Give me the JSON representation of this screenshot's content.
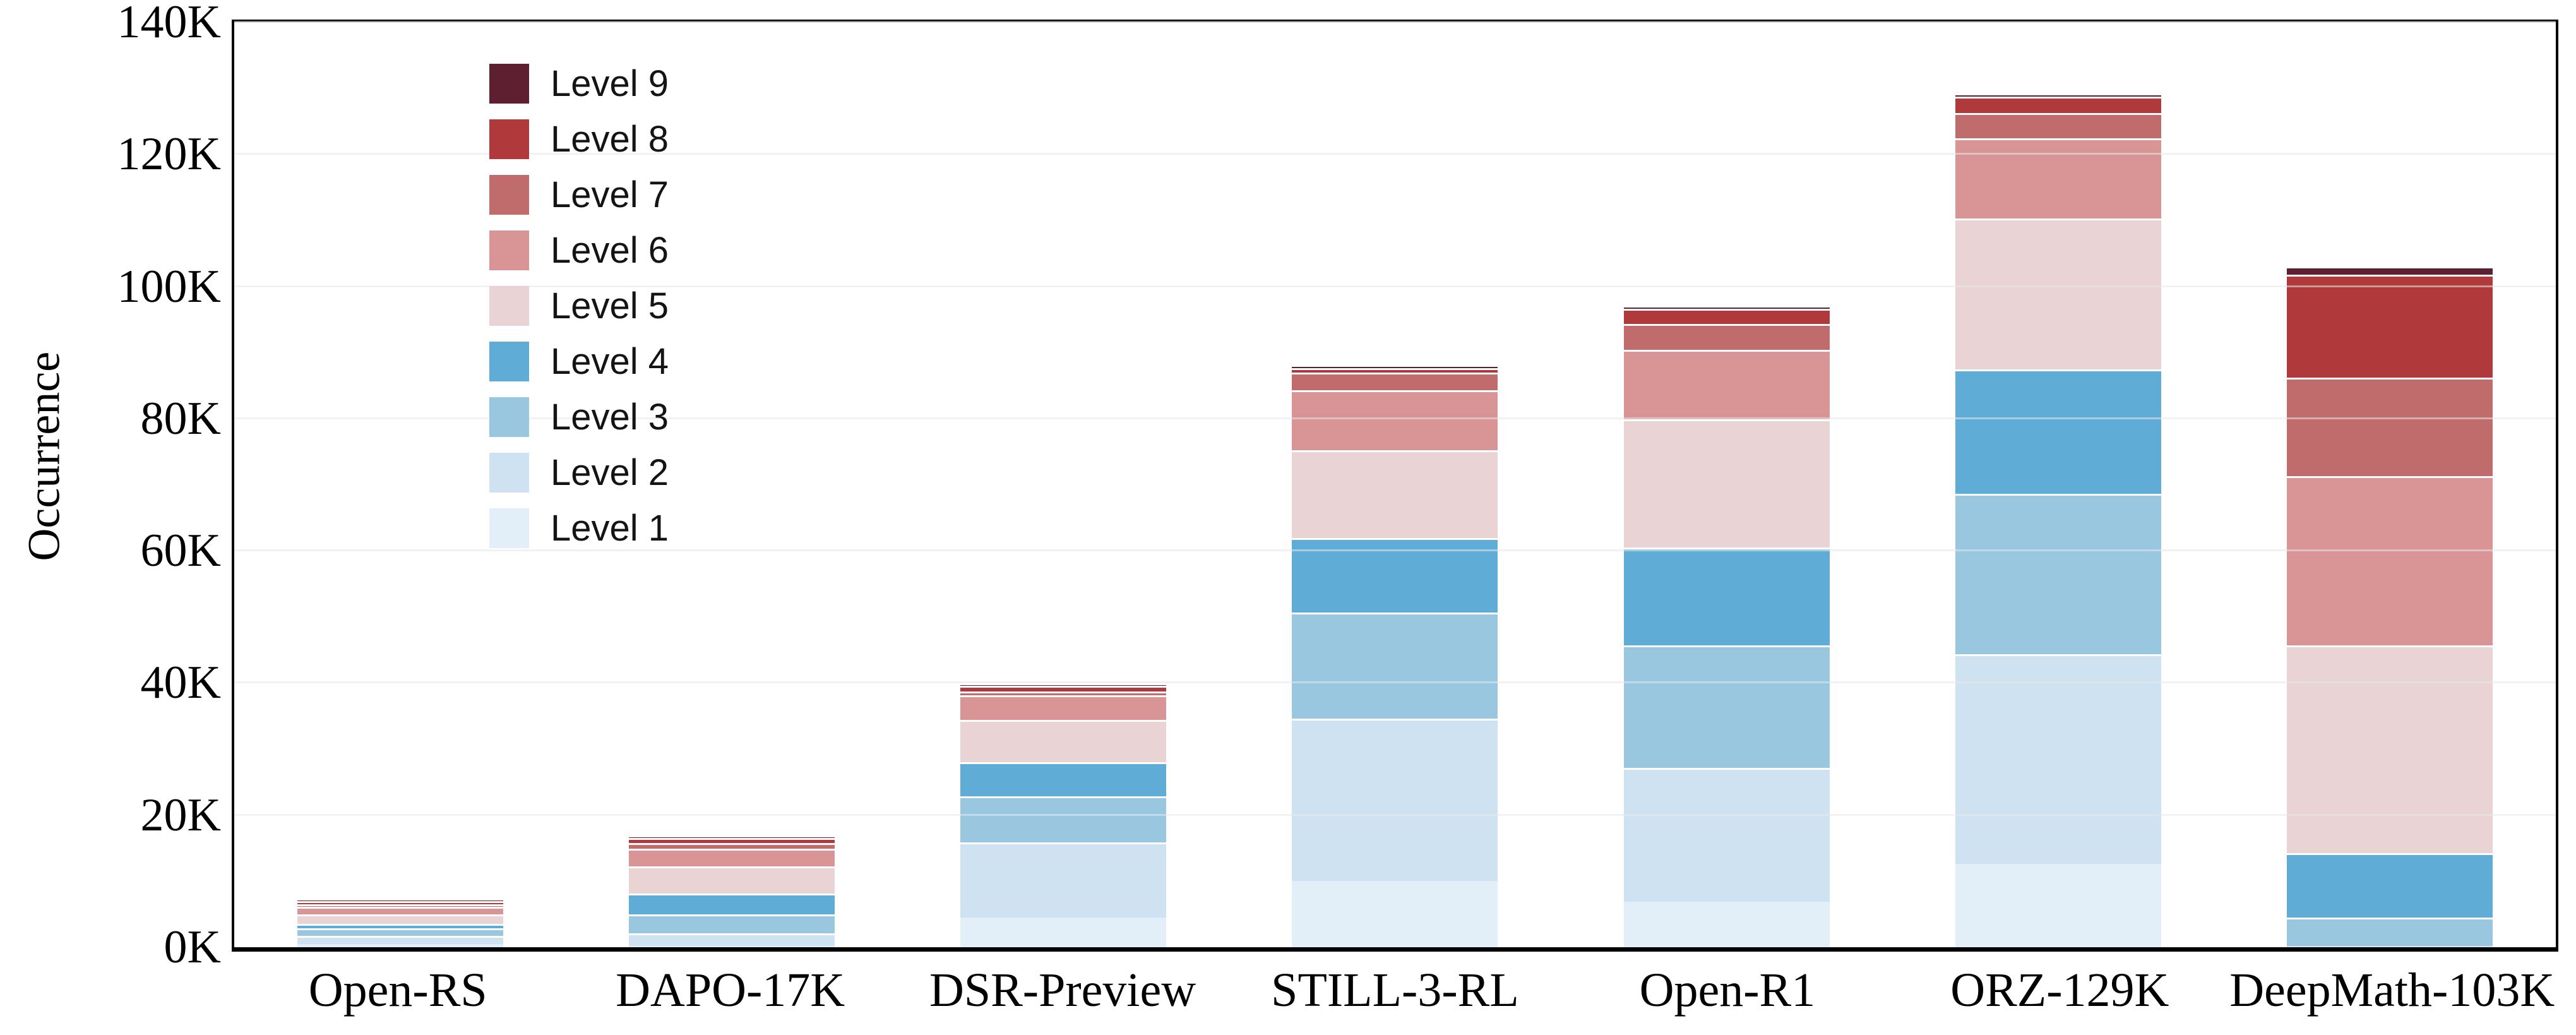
{
  "chart_data": {
    "type": "bar",
    "variant": "stacked-vertical",
    "title": "",
    "xlabel": "",
    "ylabel": "Occurrence",
    "unit": "thousands",
    "ylim": [
      0,
      140
    ],
    "grid": "horizontal",
    "legend_position": "upper-left-inside",
    "yticks": [
      {
        "value": 0,
        "label": "0K"
      },
      {
        "value": 20,
        "label": "20K"
      },
      {
        "value": 40,
        "label": "40K"
      },
      {
        "value": 60,
        "label": "60K"
      },
      {
        "value": 80,
        "label": "80K"
      },
      {
        "value": 100,
        "label": "100K"
      },
      {
        "value": 120,
        "label": "120K"
      },
      {
        "value": 140,
        "label": "140K"
      }
    ],
    "categories": [
      "Open-RS",
      "DAPO-17K",
      "DSR-Preview",
      "STILL-3-RL",
      "Open-R1",
      "ORZ-129K",
      "DeepMath-103K"
    ],
    "series": [
      {
        "name": "Level 1",
        "color": "#e3eff8",
        "values": [
          0.45,
          0.2,
          4.5,
          10.0,
          6.9,
          12.6,
          0.1
        ]
      },
      {
        "name": "Level 2",
        "color": "#cfe2f1",
        "values": [
          1.2,
          1.9,
          11.4,
          24.6,
          20.3,
          31.7,
          0.1
        ]
      },
      {
        "name": "Level 3",
        "color": "#9ac7e0",
        "values": [
          1.15,
          2.9,
          7.0,
          16.1,
          18.5,
          24.3,
          4.3
        ]
      },
      {
        "name": "Level 4",
        "color": "#5fadd6",
        "values": [
          0.65,
          3.2,
          5.2,
          11.3,
          14.8,
          18.8,
          9.7
        ]
      },
      {
        "name": "Level 5",
        "color": "#e9d3d5",
        "values": [
          1.45,
          4.1,
          6.4,
          13.3,
          19.4,
          22.8,
          31.4
        ]
      },
      {
        "name": "Level 6",
        "color": "#d99496",
        "values": [
          1.1,
          2.7,
          3.7,
          9.1,
          10.5,
          12.1,
          25.6
        ]
      },
      {
        "name": "Level 7",
        "color": "#c06c6c",
        "values": [
          0.35,
          0.9,
          0.6,
          2.7,
          3.9,
          3.8,
          14.9
        ]
      },
      {
        "name": "Level 8",
        "color": "#b03a3b",
        "values": [
          0.45,
          0.8,
          0.9,
          0.7,
          2.3,
          2.5,
          15.6
        ]
      },
      {
        "name": "Level 9",
        "color": "#5e1f30",
        "values": [
          0.05,
          0.05,
          0.05,
          0.15,
          0.2,
          0.2,
          1.2
        ]
      }
    ],
    "legend_order_top_to_bottom": [
      "Level 9",
      "Level 8",
      "Level 7",
      "Level 6",
      "Level 5",
      "Level 4",
      "Level 3",
      "Level 2",
      "Level 1"
    ],
    "totals_k": [
      6.85,
      16.75,
      39.75,
      87.95,
      96.8,
      128.8,
      102.9
    ]
  }
}
